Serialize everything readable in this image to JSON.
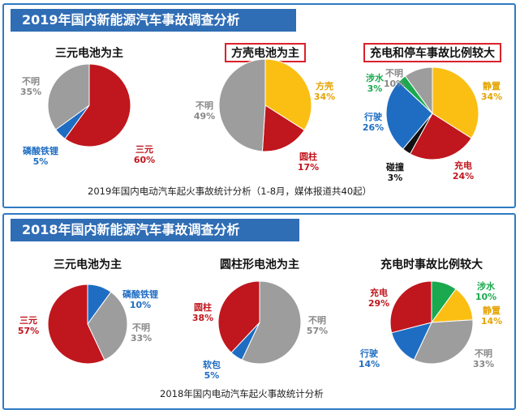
{
  "colors": {
    "red": "#c0161d",
    "yellow": "#fbbf14",
    "gray": "#9d9d9d",
    "blue": "#1f6dc3",
    "green": "#1aa94e",
    "black": "#111111",
    "accent": "#2f6db5",
    "box": "#d9222b"
  },
  "panel_2019": {
    "title": "2019年国内新能源汽车事故调查分析",
    "caption": "2019年国内电动汽车起火事故统计分析（1-8月，媒体报道共40起）"
  },
  "panel_2018": {
    "title": "2018年国内新能源汽车事故调查分析",
    "caption": "2018年国内电动汽车起火事故统计分析"
  },
  "chart_data": [
    {
      "type": "pie",
      "title": "三元电池为主",
      "year": "2019",
      "boxed": false,
      "slices": [
        {
          "name": "三元",
          "value": 60,
          "label": "60%",
          "color": "#c0161d"
        },
        {
          "name": "磷酸铁锂",
          "value": 5,
          "label": "5%",
          "color": "#1f6dc3"
        },
        {
          "name": "不明",
          "value": 35,
          "label": "35%",
          "color": "#9d9d9d"
        }
      ]
    },
    {
      "type": "pie",
      "title": "方壳电池为主",
      "year": "2019",
      "boxed": true,
      "slices": [
        {
          "name": "方壳",
          "value": 34,
          "label": "34%",
          "color": "#fbbf14"
        },
        {
          "name": "圆柱",
          "value": 17,
          "label": "17%",
          "color": "#c0161d"
        },
        {
          "name": "不明",
          "value": 49,
          "label": "49%",
          "color": "#9d9d9d"
        }
      ]
    },
    {
      "type": "pie",
      "title": "充电和停车事故比例较大",
      "year": "2019",
      "boxed": true,
      "slices": [
        {
          "name": "静置",
          "value": 34,
          "label": "34%",
          "color": "#fbbf14"
        },
        {
          "name": "充电",
          "value": 24,
          "label": "24%",
          "color": "#c0161d"
        },
        {
          "name": "碰撞",
          "value": 3,
          "label": "3%",
          "color": "#111111"
        },
        {
          "name": "行驶",
          "value": 26,
          "label": "26%",
          "color": "#1f6dc3"
        },
        {
          "name": "涉水",
          "value": 3,
          "label": "3%",
          "color": "#1aa94e"
        },
        {
          "name": "不明",
          "value": 10,
          "label": "10%",
          "color": "#9d9d9d"
        }
      ]
    },
    {
      "type": "pie",
      "title": "三元电池为主",
      "year": "2018",
      "boxed": false,
      "slices": [
        {
          "name": "磷酸铁锂",
          "value": 10,
          "label": "10%",
          "color": "#1f6dc3"
        },
        {
          "name": "不明",
          "value": 33,
          "label": "33%",
          "color": "#9d9d9d"
        },
        {
          "name": "三元",
          "value": 57,
          "label": "57%",
          "color": "#c0161d"
        }
      ]
    },
    {
      "type": "pie",
      "title": "圆柱形电池为主",
      "year": "2018",
      "boxed": false,
      "slices": [
        {
          "name": "不明",
          "value": 57,
          "label": "57%",
          "color": "#9d9d9d"
        },
        {
          "name": "软包",
          "value": 5,
          "label": "5%",
          "color": "#1f6dc3"
        },
        {
          "name": "圆柱",
          "value": 38,
          "label": "38%",
          "color": "#c0161d"
        }
      ]
    },
    {
      "type": "pie",
      "title": "充电时事故比例较大",
      "year": "2018",
      "boxed": false,
      "slices": [
        {
          "name": "涉水",
          "value": 10,
          "label": "10%",
          "color": "#1aa94e"
        },
        {
          "name": "静置",
          "value": 14,
          "label": "14%",
          "color": "#fbbf14"
        },
        {
          "name": "不明",
          "value": 33,
          "label": "33%",
          "color": "#9d9d9d"
        },
        {
          "name": "行驶",
          "value": 14,
          "label": "14%",
          "color": "#1f6dc3"
        },
        {
          "name": "充电",
          "value": 29,
          "label": "29%",
          "color": "#c0161d"
        }
      ]
    }
  ]
}
